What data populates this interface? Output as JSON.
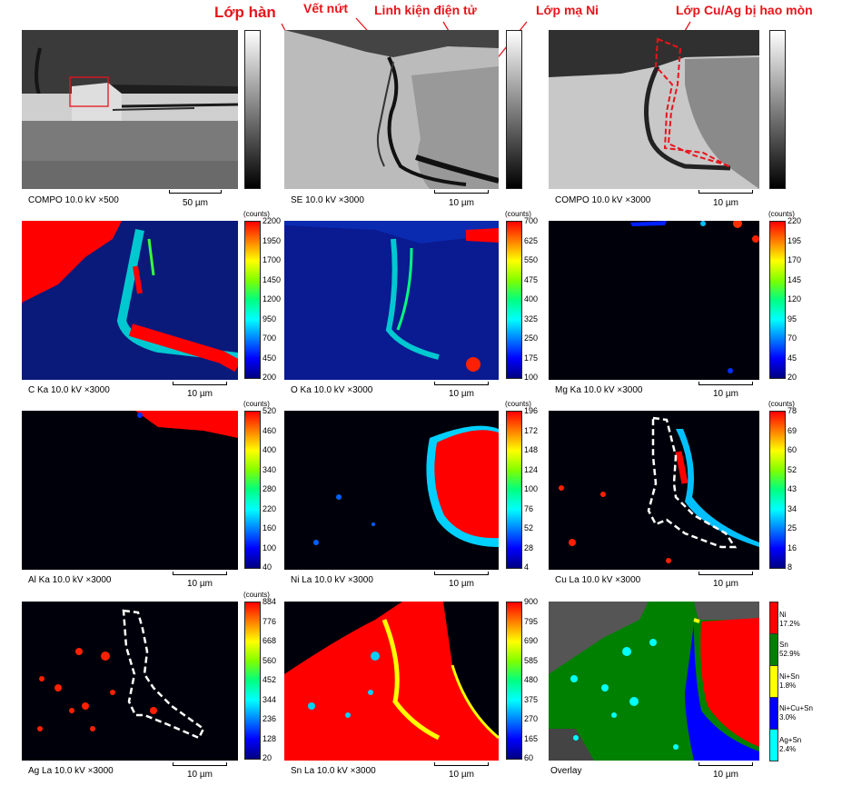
{
  "annotations": {
    "solder_layer": "Lớp hàn",
    "crack": "Vết nứt",
    "component": "Linh kiện điện tử",
    "ni_plating": "Lớp mạ Ni",
    "cu_ag_corroded": "Lớp Cu/Ag bị hao mòn"
  },
  "units": {
    "counts": "(counts)",
    "scale_10": "10 µm",
    "scale_50": "50 µm"
  },
  "panels": [
    {
      "caption": "COMPO 10.0 kV ×500",
      "scale": "50 µm"
    },
    {
      "caption": "SE 10.0 kV ×3000",
      "scale": "10 µm"
    },
    {
      "caption": "COMPO 10.0 kV ×3000",
      "scale": "10 µm"
    },
    {
      "caption": "C Ka 10.0 kV ×3000",
      "scale": "10 µm",
      "ticks": [
        "2200",
        "1950",
        "1700",
        "1450",
        "1200",
        "950",
        "700",
        "450",
        "200"
      ]
    },
    {
      "caption": "O Ka 10.0 kV ×3000",
      "scale": "10 µm",
      "ticks": [
        "700",
        "625",
        "550",
        "475",
        "400",
        "325",
        "250",
        "175",
        "100"
      ]
    },
    {
      "caption": "Mg Ka 10.0 kV ×3000",
      "scale": "10 µm",
      "ticks": [
        "220",
        "195",
        "170",
        "145",
        "120",
        "95",
        "70",
        "45",
        "20"
      ]
    },
    {
      "caption": "Al Ka 10.0 kV ×3000",
      "scale": "10 µm",
      "ticks": [
        "520",
        "460",
        "400",
        "340",
        "280",
        "220",
        "160",
        "100",
        "40"
      ]
    },
    {
      "caption": "Ni La 10.0 kV ×3000",
      "scale": "10 µm",
      "ticks": [
        "196",
        "172",
        "148",
        "124",
        "100",
        "76",
        "52",
        "28",
        "4"
      ]
    },
    {
      "caption": "Cu La 10.0 kV ×3000",
      "scale": "10 µm",
      "ticks": [
        "78",
        "69",
        "60",
        "52",
        "43",
        "34",
        "25",
        "16",
        "8"
      ]
    },
    {
      "caption": "Ag La 10.0 kV ×3000",
      "scale": "10 µm",
      "ticks": [
        "884",
        "776",
        "668",
        "560",
        "452",
        "344",
        "236",
        "128",
        "20"
      ]
    },
    {
      "caption": "Sn La 10.0 kV ×3000",
      "scale": "10 µm",
      "ticks": [
        "900",
        "795",
        "690",
        "585",
        "480",
        "375",
        "270",
        "165",
        "60"
      ]
    },
    {
      "caption": "Overlay",
      "scale": "10 µm"
    }
  ],
  "overlay_legend": [
    {
      "name": "Ni",
      "pct": "17.2%",
      "color": "#ff0000"
    },
    {
      "name": "Sn",
      "pct": "52.9%",
      "color": "#008000"
    },
    {
      "name": "Ni+Sn",
      "pct": "1.8%",
      "color": "#ffff00"
    },
    {
      "name": "Ni+Cu+Sn",
      "pct": "3.0%",
      "color": "#0000ff"
    },
    {
      "name": "Ag+Sn",
      "pct": "2.4%",
      "color": "#00ffff"
    }
  ]
}
